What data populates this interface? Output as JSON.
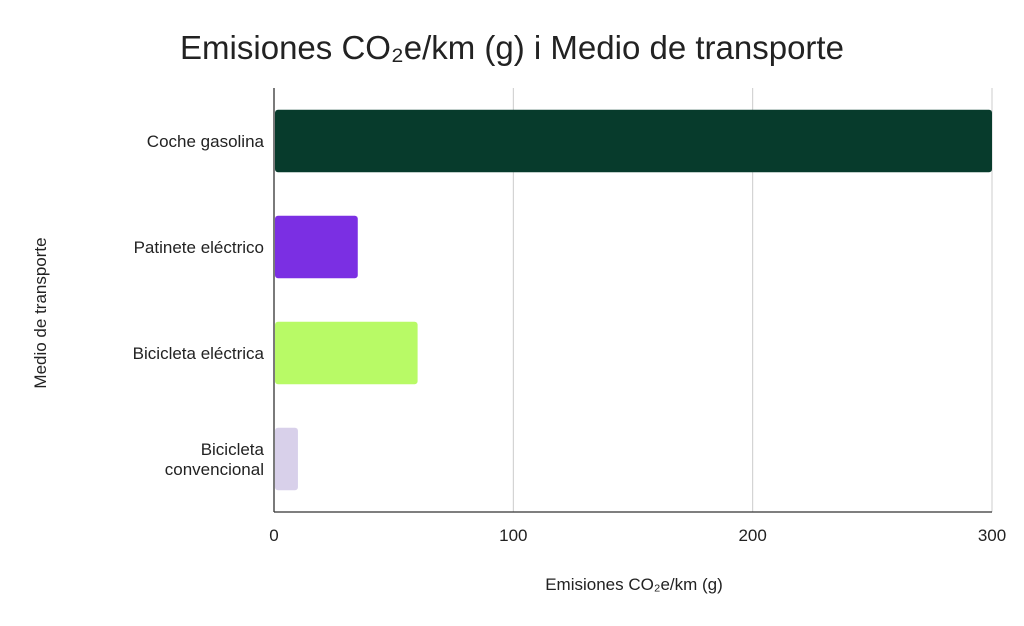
{
  "chart_data": {
    "type": "bar",
    "orientation": "horizontal",
    "title": "Emisiones CO₂e/km (g) i Medio de transporte",
    "xlabel": "Emisiones CO₂e/km (g)",
    "ylabel": "Medio de transporte",
    "categories": [
      "Coche gasolina",
      "Patinete eléctrico",
      "Bicicleta eléctrica",
      "Bicicleta convencional"
    ],
    "category_lines": [
      [
        "Coche gasolina"
      ],
      [
        "Patinete eléctrico"
      ],
      [
        "Bicicleta eléctrica"
      ],
      [
        "Bicicleta",
        "convencional"
      ]
    ],
    "values": [
      300,
      35,
      60,
      10
    ],
    "colors": [
      "#073b2c",
      "#7b2fe3",
      "#b8fa66",
      "#d8d0ea"
    ],
    "xlim": [
      0,
      300
    ],
    "xticks": [
      0,
      100,
      200,
      300
    ],
    "xtick_labels": [
      "0",
      "100",
      "200",
      "300"
    ],
    "grid": true,
    "legend": "none"
  }
}
